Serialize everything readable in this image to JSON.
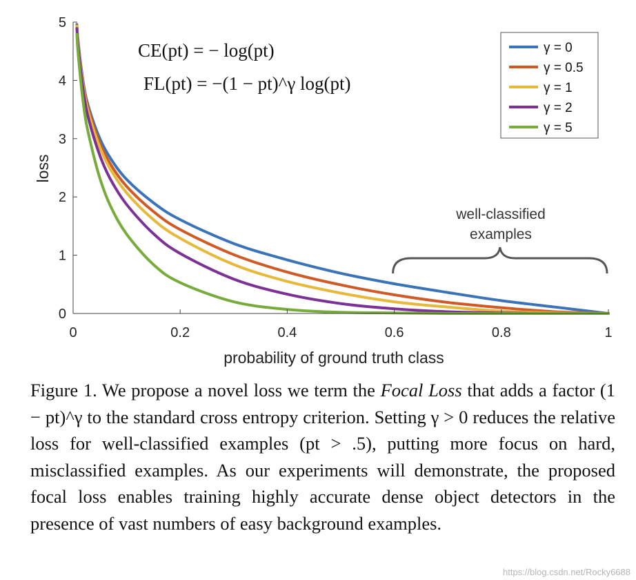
{
  "chart_data": {
    "type": "line",
    "title": "",
    "xlabel": "probability of ground truth class",
    "ylabel": "loss",
    "xlim": [
      0,
      1
    ],
    "ylim": [
      0,
      5
    ],
    "xticks": [
      0,
      0.2,
      0.4,
      0.6,
      0.8,
      1
    ],
    "xtick_labels": [
      "0",
      "0.2",
      "0.4",
      "0.6",
      "0.8",
      "1"
    ],
    "yticks": [
      0,
      1,
      2,
      3,
      4,
      5
    ],
    "ytick_labels": [
      "0",
      "1",
      "2",
      "3",
      "4",
      "5"
    ],
    "grid": false,
    "legend_position": "top-right",
    "formulas": {
      "ce": "CE(pt) = − log(pt)",
      "fl": "FL(pt) = −(1 − pt)^γ log(pt)"
    },
    "annotation": {
      "line1": "well-classified",
      "line2": "examples",
      "x_range": [
        0.6,
        1.0
      ]
    },
    "x": [
      0.007,
      0.01,
      0.02,
      0.03,
      0.05,
      0.07,
      0.1,
      0.15,
      0.2,
      0.3,
      0.4,
      0.5,
      0.6,
      0.7,
      0.8,
      0.9,
      1.0
    ],
    "series": [
      {
        "name": "γ = 0",
        "color": "#3b73b9",
        "values": [
          4.96,
          4.61,
          3.91,
          3.51,
          3.0,
          2.66,
          2.3,
          1.9,
          1.61,
          1.2,
          0.92,
          0.69,
          0.51,
          0.36,
          0.22,
          0.11,
          0.0
        ]
      },
      {
        "name": "γ = 0.5",
        "color": "#cf5a26",
        "values": [
          4.94,
          4.58,
          3.87,
          3.46,
          2.92,
          2.56,
          2.18,
          1.75,
          1.44,
          1.01,
          0.71,
          0.49,
          0.32,
          0.19,
          0.1,
          0.03,
          0.0
        ]
      },
      {
        "name": "γ = 1",
        "color": "#e8b83a",
        "values": [
          4.93,
          4.56,
          3.83,
          3.4,
          2.85,
          2.47,
          2.07,
          1.61,
          1.29,
          0.84,
          0.55,
          0.35,
          0.2,
          0.11,
          0.04,
          0.01,
          0.0
        ]
      },
      {
        "name": "γ = 2",
        "color": "#7b3294",
        "values": [
          4.89,
          4.52,
          3.76,
          3.3,
          2.71,
          2.3,
          1.87,
          1.37,
          1.03,
          0.59,
          0.33,
          0.17,
          0.08,
          0.03,
          0.01,
          0.0,
          0.0
        ]
      },
      {
        "name": "γ = 5",
        "color": "#77ac3b",
        "values": [
          4.79,
          4.39,
          3.54,
          3.03,
          2.32,
          1.84,
          1.36,
          0.84,
          0.53,
          0.2,
          0.07,
          0.02,
          0.01,
          0.0,
          0.0,
          0.0,
          0.0
        ]
      }
    ]
  },
  "caption": {
    "p1": "Figure 1. We propose a novel loss we term the ",
    "em": "Focal Loss",
    "p2": " that adds a factor (1 − pt)^γ to the standard cross entropy criterion. Setting γ > 0 reduces the relative loss for well-classified examples (pt > .5), putting more focus on hard, misclassified examples. As our experiments will demonstrate, the proposed focal loss enables training highly accurate dense object detectors in the presence of vast numbers of easy background examples."
  },
  "watermark": "https://blog.csdn.net/Rocky6688"
}
